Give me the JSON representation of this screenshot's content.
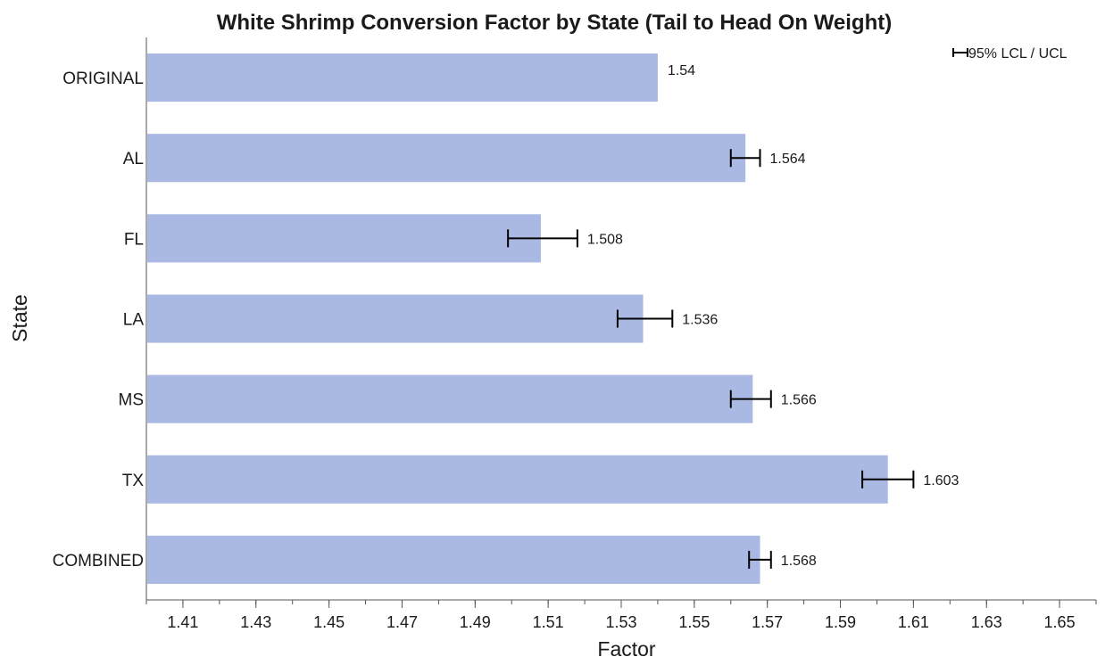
{
  "chart_data": {
    "type": "bar",
    "orientation": "horizontal",
    "title": "White Shrimp Conversion Factor by State (Tail to Head On Weight)",
    "xlabel": "Factor",
    "ylabel": "State",
    "xlim": [
      1.4,
      1.66
    ],
    "x_ticks": [
      "1.41",
      "1.43",
      "1.45",
      "1.47",
      "1.49",
      "1.51",
      "1.53",
      "1.55",
      "1.57",
      "1.59",
      "1.61",
      "1.63",
      "1.65"
    ],
    "categories": [
      "ORIGINAL",
      "AL",
      "FL",
      "LA",
      "MS",
      "TX",
      "COMBINED"
    ],
    "values": [
      1.54,
      1.564,
      1.508,
      1.536,
      1.566,
      1.603,
      1.568
    ],
    "value_labels": [
      "1.54",
      "1.564",
      "1.508",
      "1.536",
      "1.566",
      "1.603",
      "1.568"
    ],
    "error_bars": [
      null,
      {
        "lcl": 1.56,
        "ucl": 1.568
      },
      {
        "lcl": 1.499,
        "ucl": 1.518
      },
      {
        "lcl": 1.529,
        "ucl": 1.544
      },
      {
        "lcl": 1.56,
        "ucl": 1.571
      },
      {
        "lcl": 1.596,
        "ucl": 1.61
      },
      {
        "lcl": 1.565,
        "ucl": 1.571
      }
    ],
    "legend": {
      "label": "95% LCL / UCL",
      "position": "top-right"
    },
    "bar_color": "#aab9e3",
    "error_bar_color": "#000000",
    "grid": false
  }
}
